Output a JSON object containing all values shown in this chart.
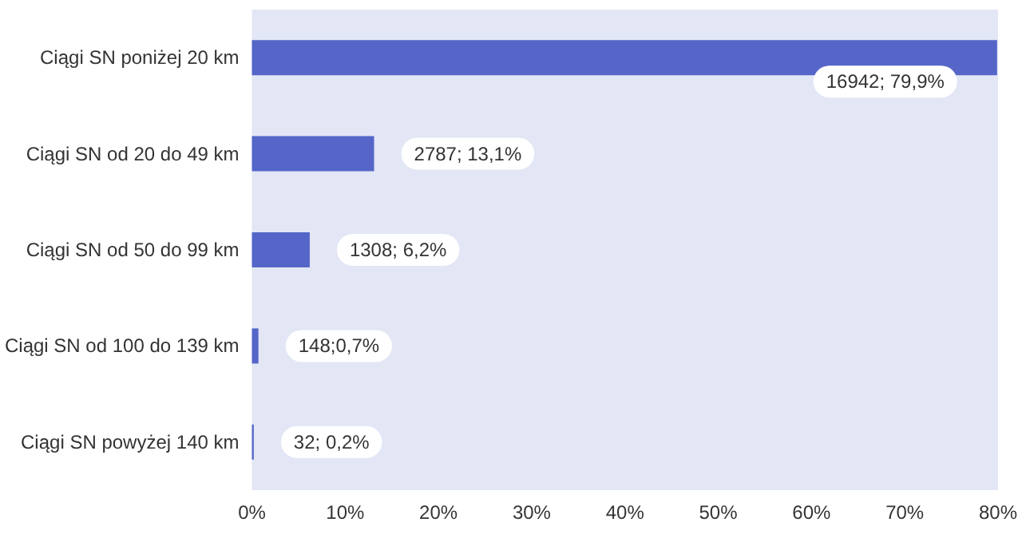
{
  "chart_data": {
    "type": "bar",
    "orientation": "horizontal",
    "categories": [
      "Ciągi SN poniżej 20 km",
      "Ciągi SN od 20 do 49 km",
      "Ciągi SN od 50 do 99 km",
      "Ciągi SN od 100 do 139 km",
      "Ciągi SN powyżej 140 km"
    ],
    "values": [
      79.9,
      13.1,
      6.2,
      0.7,
      0.2
    ],
    "value_labels": [
      "16942; 79,9%",
      "2787; 13,1%",
      "1308; 6,2%",
      "148;0,7%",
      "32; 0,2%"
    ],
    "color": "#5566c8",
    "xlim": [
      0,
      80
    ],
    "xticks": [
      {
        "value": 0,
        "label": "0%"
      },
      {
        "value": 10,
        "label": "10%"
      },
      {
        "value": 20,
        "label": "20%"
      },
      {
        "value": 30,
        "label": "30%"
      },
      {
        "value": 40,
        "label": "40%"
      },
      {
        "value": 50,
        "label": "50%"
      },
      {
        "value": 60,
        "label": "60%"
      },
      {
        "value": 70,
        "label": "70%"
      },
      {
        "value": 80,
        "label": "80%"
      }
    ],
    "grid": false
  }
}
